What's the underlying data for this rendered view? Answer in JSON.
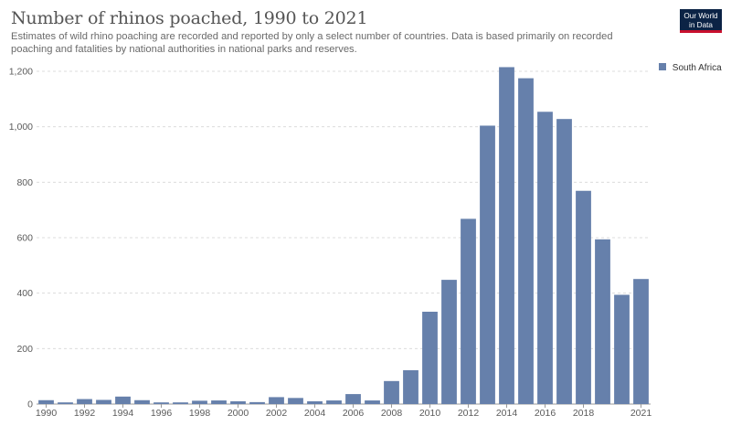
{
  "header": {
    "title": "Number of rhinos poached, 1990 to 2021",
    "subtitle": "Estimates of wild rhino poaching are recorded and reported by only a select number of countries. Data is based primarily on recorded poaching and fatalities by national authorities in national parks and reserves."
  },
  "logo": {
    "line1": "Our World",
    "line2": "in Data"
  },
  "colors": {
    "bar": "#6680ab",
    "grid": "#dcdcdc",
    "text": "#5b5b5b"
  },
  "chart_data": {
    "type": "bar",
    "categories": [
      "1990",
      "1991",
      "1992",
      "1993",
      "1994",
      "1995",
      "1996",
      "1997",
      "1998",
      "1999",
      "2000",
      "2001",
      "2002",
      "2003",
      "2004",
      "2005",
      "2006",
      "2007",
      "2008",
      "2009",
      "2010",
      "2011",
      "2012",
      "2013",
      "2014",
      "2015",
      "2016",
      "2017",
      "2018",
      "2019",
      "2020",
      "2021"
    ],
    "series": [
      {
        "name": "South Africa",
        "values": [
          14,
          6,
          18,
          15,
          27,
          14,
          6,
          6,
          12,
          13,
          10,
          7,
          25,
          22,
          10,
          13,
          36,
          13,
          83,
          122,
          333,
          448,
          668,
          1004,
          1215,
          1175,
          1054,
          1028,
          769,
          594,
          394,
          451
        ]
      }
    ],
    "x_tick_labels": [
      "1990",
      "1992",
      "1994",
      "1996",
      "1998",
      "2000",
      "2002",
      "2004",
      "2006",
      "2008",
      "2010",
      "2012",
      "2014",
      "2016",
      "2018",
      "2021"
    ],
    "y_ticks": [
      0,
      200,
      400,
      600,
      800,
      1000,
      1200
    ],
    "y_tick_labels": [
      "0",
      "200",
      "400",
      "600",
      "800",
      "1,000",
      "1,200"
    ],
    "ylim": [
      0,
      1200
    ],
    "grid": "horizontal dashed",
    "legend_position": "right"
  }
}
